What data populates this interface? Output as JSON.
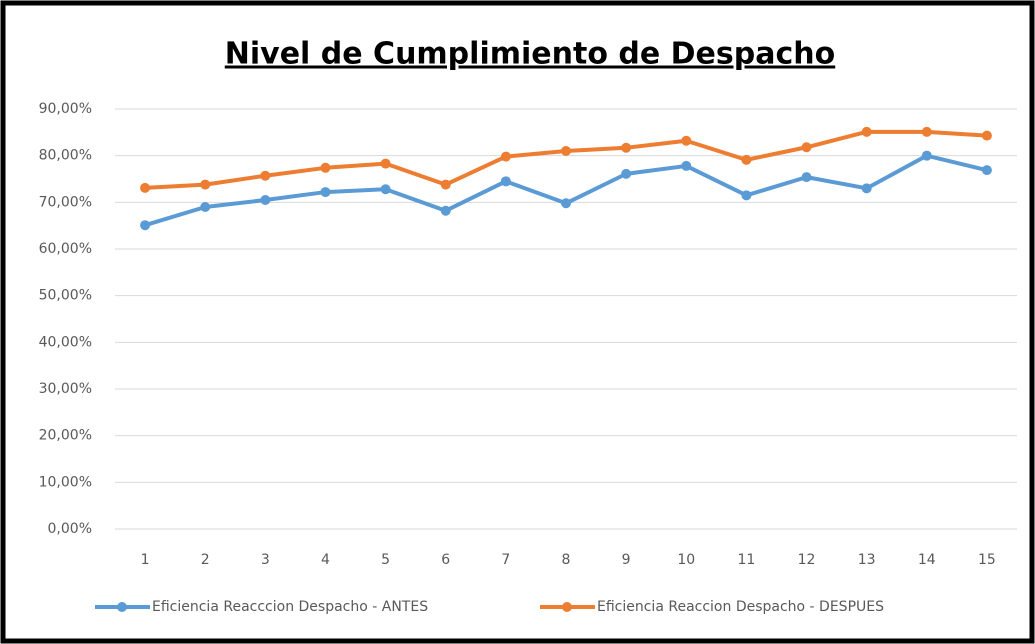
{
  "chart_data": {
    "type": "line",
    "title": "Nivel de Cumplimiento de Despacho",
    "categories": [
      "1",
      "2",
      "3",
      "4",
      "5",
      "6",
      "7",
      "8",
      "9",
      "10",
      "11",
      "12",
      "13",
      "14",
      "15"
    ],
    "series": [
      {
        "name": "Eficiencia Reacccion Despacho - ANTES",
        "color": "#5b9bd5",
        "values": [
          65.1,
          69.0,
          70.5,
          72.2,
          72.8,
          68.2,
          74.5,
          69.8,
          76.1,
          77.8,
          71.5,
          75.4,
          73.0,
          80.0,
          76.9
        ]
      },
      {
        "name": "Eficiencia Reaccion Despacho - DESPUES",
        "color": "#ed7d31",
        "values": [
          73.1,
          73.8,
          75.7,
          77.4,
          78.3,
          73.8,
          79.8,
          81.0,
          81.7,
          83.2,
          79.1,
          81.8,
          85.1,
          85.1,
          84.3
        ]
      }
    ],
    "ylim": [
      0,
      90
    ],
    "yticks": [
      {
        "value": 0,
        "label": "0,00%"
      },
      {
        "value": 10,
        "label": "10,00%"
      },
      {
        "value": 20,
        "label": "20,00%"
      },
      {
        "value": 30,
        "label": "30,00%"
      },
      {
        "value": 40,
        "label": "40,00%"
      },
      {
        "value": 50,
        "label": "50,00%"
      },
      {
        "value": 60,
        "label": "60,00%"
      },
      {
        "value": 70,
        "label": "70,00%"
      },
      {
        "value": 80,
        "label": "80,00%"
      },
      {
        "value": 90,
        "label": "90,00%"
      }
    ],
    "grid": true,
    "legend": "bottom"
  }
}
